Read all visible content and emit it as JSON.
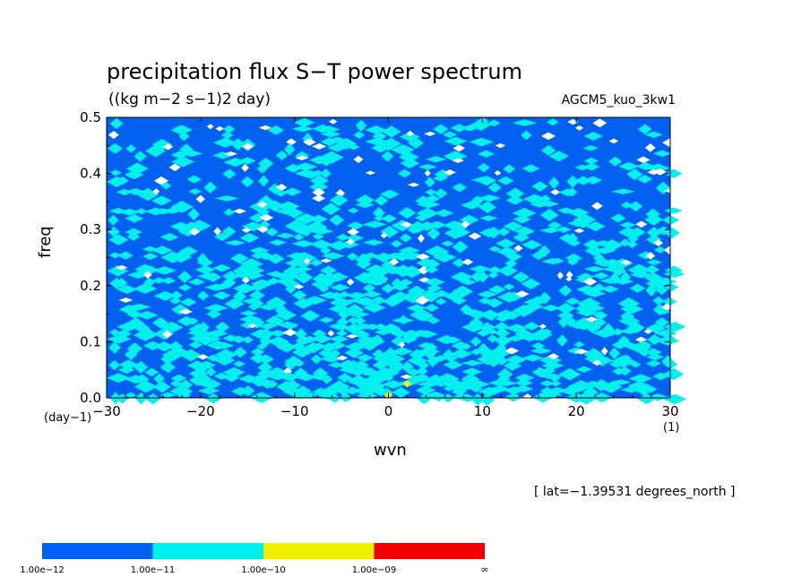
{
  "chart_data": {
    "type": "heatmap",
    "title": "precipitation flux S−T power spectrum",
    "subtitle": "((kg m−2 s−1)2 day)",
    "run_label": "AGCM5_kuo_3kw1",
    "xlabel": "wvn",
    "ylabel": "freq",
    "x_unit": "(1)",
    "y_unit": "(day−1)",
    "xlim": [
      -30,
      30
    ],
    "ylim": [
      0,
      0.5
    ],
    "x_ticks": [
      -30,
      -20,
      -10,
      0,
      10,
      20,
      30
    ],
    "y_ticks": [
      0.0,
      0.1,
      0.2,
      0.3,
      0.4,
      0.5
    ],
    "x_tick_labels": [
      "−30",
      "−20",
      "−10",
      "0",
      "10",
      "20",
      "30"
    ],
    "y_tick_labels": [
      "0.0",
      "0.1",
      "0.2",
      "0.3",
      "0.4",
      "0.5"
    ],
    "annotation": "[ lat=−1.39531 degrees_north ]",
    "contour_levels": [
      {
        "label": "1.00e−12",
        "color": "#0060f0"
      },
      {
        "label": "1.00e−11",
        "color": "#00f0f0"
      },
      {
        "label": "1.00e−10",
        "color": "#f0f000"
      },
      {
        "label": "1.00e−09",
        "color": "#f00000"
      }
    ],
    "colorbar_end_label": "∞",
    "background_color": "#ffffff",
    "peaks": [
      {
        "wvn": 0,
        "freq": 0.005,
        "level": "1.00e−10"
      },
      {
        "wvn": 2,
        "freq": 0.025,
        "level": "1.00e−10"
      }
    ]
  }
}
